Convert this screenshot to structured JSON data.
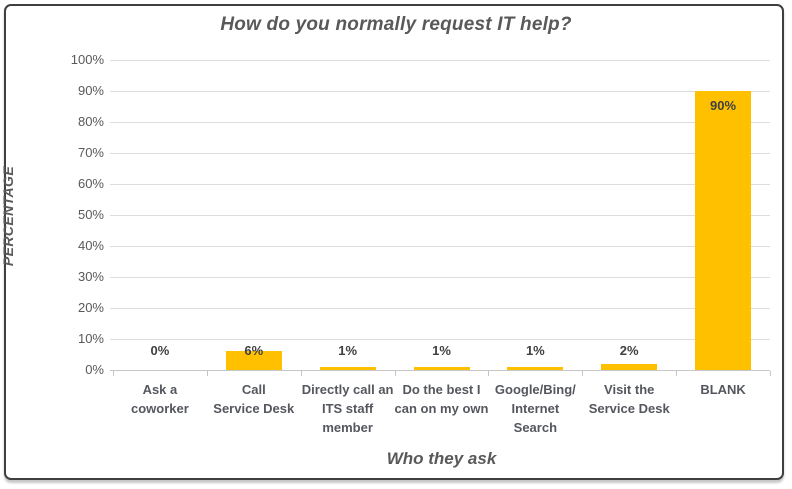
{
  "chart_data": {
    "type": "bar",
    "title": "How do you normally request IT help?",
    "xlabel": "Who they ask",
    "ylabel": "PERCENTAGE",
    "categories": [
      "Ask a\ncoworker",
      "Call\nService Desk",
      "Directly call an\nITS staff\nmember",
      "Do the best I\ncan on my own",
      "Google/Bing/\nInternet\nSearch",
      "Visit the\nService Desk",
      "BLANK"
    ],
    "values": [
      0,
      6,
      1,
      1,
      1,
      2,
      90
    ],
    "data_labels": [
      "0%",
      "6%",
      "1%",
      "1%",
      "1%",
      "2%",
      "90%"
    ],
    "ylim": [
      0,
      100
    ],
    "ytick_step": 10,
    "ytick_labels": [
      "0%",
      "10%",
      "20%",
      "30%",
      "40%",
      "50%",
      "60%",
      "70%",
      "80%",
      "90%",
      "100%"
    ],
    "grid": true,
    "legend": "none",
    "bar_color": "#FFC000"
  },
  "colors": {
    "bar": "#FFC000",
    "gridline": "#dddddd",
    "axis_line": "#c6c6c6",
    "tick_text": "#595959",
    "category_text": "#54575e",
    "data_label_text": "#404040",
    "title_text": "#595959",
    "frame_border": "#3f3f3f"
  }
}
